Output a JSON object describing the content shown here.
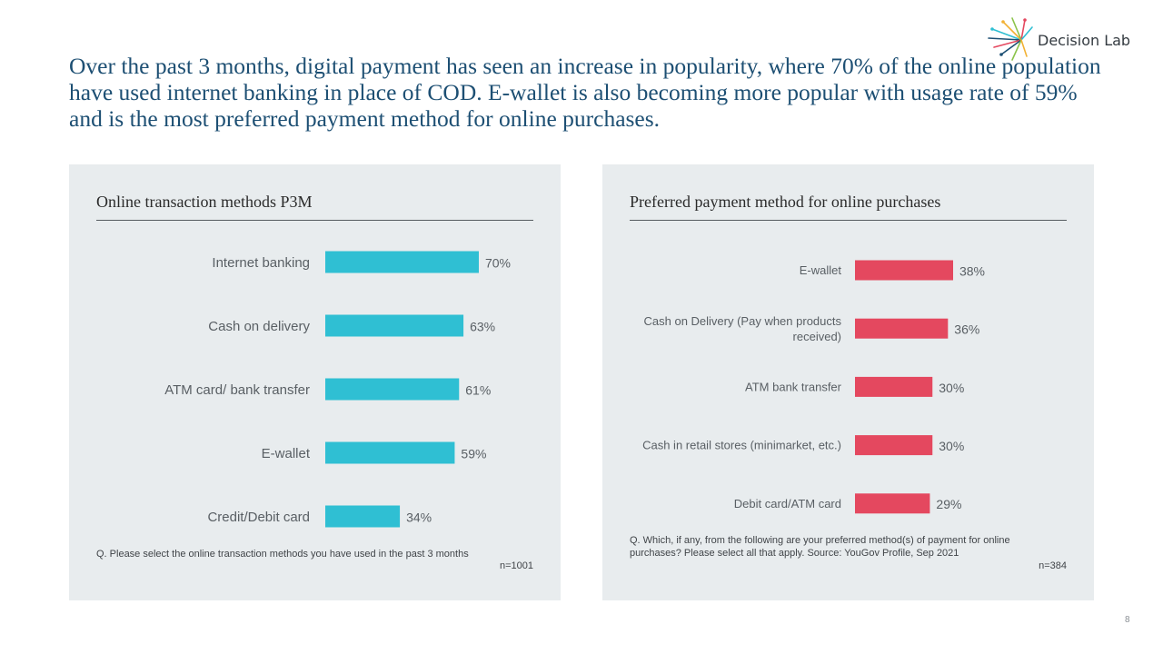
{
  "header": {
    "headline": "Over the past 3 months, digital payment has seen an increase in popularity, where 70% of the online population have used internet banking in place of COD. E-wallet is also becoming more popular with usage rate of 59% and is the most preferred payment method for online purchases.",
    "logo_text": "Decision Lab",
    "logo_icon": "starburst-logo-icon"
  },
  "colors": {
    "bar_left": "#2fbfd3",
    "bar_right": "#e4485f",
    "panel_bg": "#e8ecee",
    "headline": "#1d4f73"
  },
  "left_panel": {
    "title": "Online transaction methods P3M",
    "footnote": "Q. Please select the online transaction methods you have used in the past 3 months",
    "n": "n=1001"
  },
  "right_panel": {
    "title": "Preferred payment method for online purchases",
    "footnote": "Q. Which, if any, from the following are your preferred method(s) of payment for online purchases? Please select all that apply. Source: YouGov Profile, Sep 2021",
    "n": "n=384"
  },
  "page_number": "8",
  "chart_data": [
    {
      "type": "bar",
      "orientation": "horizontal",
      "title": "Online transaction methods P3M",
      "categories": [
        "Internet banking",
        "Cash on delivery",
        "ATM card/ bank transfer",
        "E-wallet",
        "Credit/Debit card"
      ],
      "values": [
        70,
        63,
        61,
        59,
        34
      ],
      "value_labels": [
        "70%",
        "63%",
        "61%",
        "59%",
        "34%"
      ],
      "unit": "%",
      "xlim": [
        0,
        100
      ],
      "grid": false,
      "legend": "none"
    },
    {
      "type": "bar",
      "orientation": "horizontal",
      "title": "Preferred payment method for online purchases",
      "categories": [
        "E-wallet",
        "Cash on Delivery (Pay when products received)",
        "ATM bank transfer",
        "Cash in retail stores (minimarket, etc.)",
        "Debit card/ATM card"
      ],
      "category_lines": [
        [
          "E-wallet"
        ],
        [
          "Cash on Delivery (Pay when products",
          "received)"
        ],
        [
          "ATM bank transfer"
        ],
        [
          "Cash in retail stores (minimarket, etc.)"
        ],
        [
          "Debit card/ATM card"
        ]
      ],
      "values": [
        38,
        36,
        30,
        30,
        29
      ],
      "value_labels": [
        "38%",
        "36%",
        "30%",
        "30%",
        "29%"
      ],
      "unit": "%",
      "xlim": [
        0,
        100
      ],
      "grid": false,
      "legend": "none"
    }
  ]
}
